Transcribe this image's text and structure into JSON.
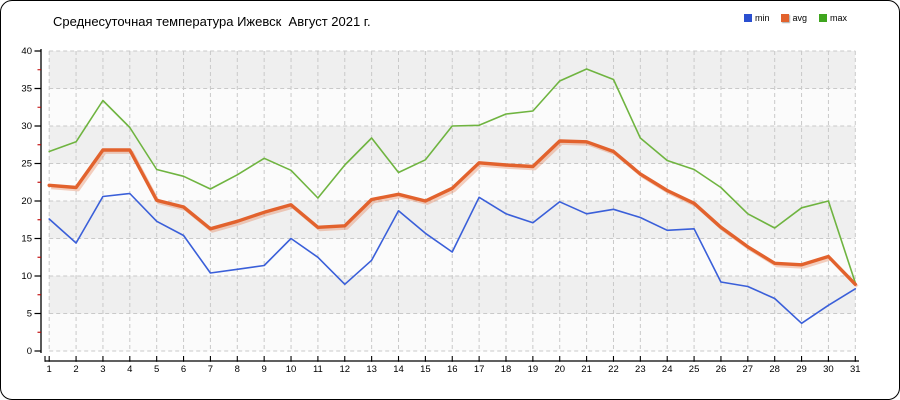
{
  "header": {
    "title": "Среднесуточная температура Ижевск  Август 2021 г."
  },
  "legend": {
    "position": "top-right",
    "items": [
      {
        "label": "min",
        "color": "#2a4fd0"
      },
      {
        "label": "avg",
        "color": "#e2622d"
      },
      {
        "label": "max",
        "color": "#3fa51e"
      }
    ]
  },
  "chart_data": {
    "type": "line",
    "title": "Среднесуточная температура Ижевск  Август 2021 г.",
    "xlabel": "",
    "ylabel": "",
    "x": [
      1,
      2,
      3,
      4,
      5,
      6,
      7,
      8,
      9,
      10,
      11,
      12,
      13,
      14,
      15,
      16,
      17,
      18,
      19,
      20,
      21,
      22,
      23,
      24,
      25,
      26,
      27,
      28,
      29,
      30,
      31
    ],
    "series": [
      {
        "name": "min",
        "color": "#3a5fd9",
        "width": 1.6,
        "values": [
          17.6,
          14.4,
          20.6,
          21.0,
          17.3,
          15.4,
          10.4,
          10.9,
          11.4,
          15.0,
          12.5,
          8.9,
          12.1,
          18.7,
          15.7,
          13.2,
          20.5,
          18.3,
          17.1,
          19.9,
          18.3,
          18.9,
          17.8,
          16.1,
          16.3,
          9.2,
          8.6,
          7.0,
          3.7,
          6.1,
          8.3
        ]
      },
      {
        "name": "avg",
        "color": "#e2622d",
        "width": 3.4,
        "shadow": true,
        "values": [
          22.1,
          21.8,
          26.8,
          26.8,
          20.1,
          19.2,
          16.3,
          17.3,
          18.5,
          19.5,
          16.5,
          16.7,
          20.2,
          20.9,
          20.0,
          21.7,
          25.1,
          24.8,
          24.6,
          28.0,
          27.9,
          26.6,
          23.6,
          21.4,
          19.7,
          16.5,
          13.9,
          11.7,
          11.5,
          12.6,
          8.9
        ]
      },
      {
        "name": "max",
        "color": "#6fb440",
        "width": 1.6,
        "values": [
          26.6,
          27.9,
          33.4,
          29.8,
          24.2,
          23.3,
          21.6,
          23.5,
          25.7,
          24.1,
          20.4,
          24.8,
          28.4,
          23.8,
          25.5,
          30.0,
          30.1,
          31.6,
          32.0,
          36.0,
          37.6,
          36.2,
          28.4,
          25.4,
          24.2,
          21.8,
          18.3,
          16.4,
          19.1,
          20.0,
          9.1
        ]
      }
    ],
    "ylim": [
      0,
      40
    ],
    "yticks": [
      0,
      5,
      10,
      15,
      20,
      25,
      30,
      35,
      40
    ],
    "y_minor_step": 2.5,
    "grid": true,
    "grid_color": "#c9c9c9",
    "plot_band_colors": [
      "#efefef",
      "#fbfbfb"
    ],
    "axis_color": "#000000",
    "minor_tick_color": "#c00000",
    "legend_position": "top-right"
  }
}
